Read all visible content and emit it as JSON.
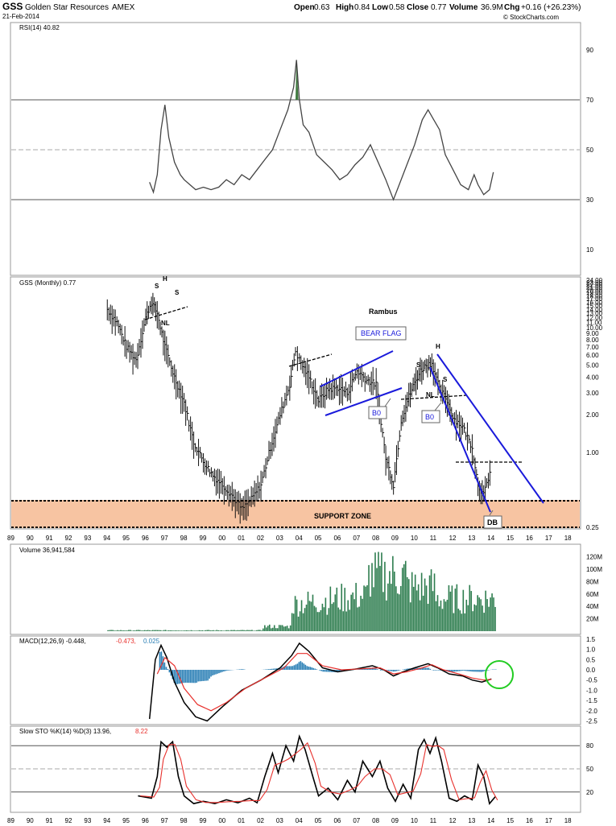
{
  "header": {
    "symbol": "GSS",
    "company": "Golden Star Resources",
    "exchange": "AMEX",
    "date": "21-Feb-2014",
    "open_label": "Open",
    "open": "0.63",
    "high_label": "High",
    "high": "0.84",
    "low_label": "Low",
    "low": "0.58",
    "close_label": "Close",
    "close": "0.77",
    "volume_label": "Volume",
    "volume": "36.9M",
    "chg_label": "Chg",
    "chg": "+0.16 (+26.23%)",
    "watermark": "© StockCharts.com"
  },
  "x_axis_labels": [
    "89",
    "90",
    "91",
    "92",
    "93",
    "94",
    "95",
    "96",
    "97",
    "98",
    "99",
    "00",
    "01",
    "02",
    "03",
    "04",
    "05",
    "06",
    "07",
    "08",
    "09",
    "10",
    "11",
    "12",
    "13",
    "14",
    "15",
    "16",
    "17",
    "18"
  ],
  "colors": {
    "accent_blue": "#1a1adb",
    "volume_green": "#2e7d4f",
    "macd_hist": "#2a7fb5",
    "signal_red": "#e8312d",
    "support_fill": "#f7c4a2",
    "support_border": "#e9822f",
    "highlight_green": "#22cc22",
    "rsi_fill": "#3f7a3f"
  },
  "chart_data": [
    {
      "panel": "rsi",
      "type": "line",
      "title": "RSI(14) 40.82",
      "ylim": [
        0,
        100
      ],
      "y_ticks": [
        10,
        30,
        50,
        70,
        90
      ],
      "reference_lines": [
        30,
        50,
        70
      ],
      "x": [
        1996.2,
        1996.4,
        1996.6,
        1996.8,
        1997.0,
        1997.2,
        1997.5,
        1997.8,
        1998.0,
        1998.3,
        1998.6,
        1999.0,
        1999.4,
        1999.8,
        2000.2,
        2000.6,
        2001.0,
        2001.4,
        2001.8,
        2002.2,
        2002.6,
        2003.0,
        2003.4,
        2003.7,
        2003.85,
        2004.0,
        2004.2,
        2004.5,
        2004.9,
        2005.3,
        2005.7,
        2006.1,
        2006.5,
        2006.9,
        2007.3,
        2007.7,
        2008.1,
        2008.5,
        2008.9,
        2009.2,
        2009.6,
        2010.0,
        2010.4,
        2010.7,
        2011.0,
        2011.3,
        2011.6,
        2012.0,
        2012.4,
        2012.8,
        2013.1,
        2013.3,
        2013.6,
        2013.9,
        2014.1
      ],
      "values": [
        37,
        33,
        40,
        58,
        68,
        55,
        45,
        40,
        38,
        36,
        34,
        35,
        34,
        35,
        38,
        36,
        40,
        38,
        42,
        46,
        50,
        58,
        66,
        75,
        86,
        70,
        60,
        57,
        48,
        45,
        42,
        38,
        40,
        44,
        47,
        52,
        45,
        38,
        30,
        36,
        44,
        52,
        62,
        66,
        62,
        58,
        48,
        42,
        36,
        34,
        40,
        36,
        32,
        34,
        41
      ]
    },
    {
      "panel": "price",
      "type": "candlestick-bar",
      "title": "GSS (Monthly) 0.77",
      "scale": "log",
      "ylim": [
        0.25,
        24
      ],
      "y_ticks": [
        0.25,
        1.0,
        2.0,
        3.0,
        4.0,
        5.0,
        6.0,
        7.0,
        8.0,
        9.0,
        10.0,
        11.0,
        12.0,
        13.0,
        14.0,
        15.0,
        16.0,
        17.0,
        18.0,
        19.0,
        20.0,
        21.0,
        22.0,
        23.0,
        24.0
      ],
      "x": [
        1994.0,
        1994.5,
        1995.0,
        1995.5,
        1996.0,
        1996.3,
        1996.6,
        1997.0,
        1997.5,
        1998.0,
        1998.5,
        1999.0,
        1999.5,
        2000.0,
        2000.5,
        2001.0,
        2001.5,
        2002.0,
        2002.5,
        2003.0,
        2003.5,
        2003.8,
        2004.0,
        2004.5,
        2005.0,
        2005.5,
        2006.0,
        2006.5,
        2007.0,
        2007.5,
        2008.0,
        2008.5,
        2008.9,
        2009.3,
        2009.7,
        2010.0,
        2010.3,
        2010.6,
        2010.9,
        2011.3,
        2011.7,
        2012.0,
        2012.5,
        2013.0,
        2013.3,
        2013.6,
        2014.0
      ],
      "close": [
        14,
        11,
        7,
        5.5,
        12,
        16,
        13,
        7,
        4,
        2.5,
        1.2,
        0.85,
        0.65,
        0.55,
        0.45,
        0.35,
        0.42,
        0.55,
        1.1,
        2.0,
        3.5,
        6.5,
        5.5,
        4.0,
        2.6,
        3.2,
        3.3,
        3.0,
        4.5,
        3.8,
        3.5,
        0.9,
        0.55,
        1.8,
        2.8,
        3.6,
        4.5,
        5.0,
        5.2,
        3.2,
        2.6,
        1.9,
        1.6,
        1.1,
        0.55,
        0.45,
        0.77
      ],
      "labels": [
        "Rambus",
        "BEAR FLAG",
        "SUPPORT ZONE",
        "B0",
        "B0",
        "DB",
        "H",
        "S",
        "S",
        "NL",
        "H",
        "S",
        "S",
        "NL"
      ],
      "support_zone": [
        0.28,
        0.42
      ],
      "annotations": {
        "bear_flag": "BEAR FLAG",
        "support": "SUPPORT ZONE",
        "bo1": "B0",
        "bo2": "B0",
        "db": "DB",
        "author": "Rambus"
      }
    },
    {
      "panel": "volume",
      "type": "bar",
      "title": "Volume 36,941,584",
      "ylim": [
        0,
        130000000
      ],
      "y_ticks": [
        "20M",
        "40M",
        "60M",
        "80M",
        "100M",
        "120M"
      ]
    },
    {
      "panel": "macd",
      "type": "line",
      "title": "MACD(12,26,9) -0.448, -0.473, 0.025",
      "title_parts": [
        "MACD(12,26,9) -0.448,",
        "-0.473,",
        "0.025"
      ],
      "ylim": [
        -2.7,
        1.7
      ],
      "y_ticks": [
        "1.5",
        "1.0",
        "0.5",
        "0.0",
        "-0.5",
        "-1.0",
        "-1.5",
        "-2.0",
        "-2.5"
      ]
    },
    {
      "panel": "stochastic",
      "type": "line",
      "title": "Slow STO %K(14) %D(3) 13.96, 8.22",
      "title_parts": [
        "Slow STO %K(14) %D(3) 13.96,",
        "8.22"
      ],
      "ylim": [
        0,
        100
      ],
      "y_ticks": [
        20,
        50,
        80
      ],
      "reference_lines": [
        20,
        50,
        80
      ]
    }
  ]
}
